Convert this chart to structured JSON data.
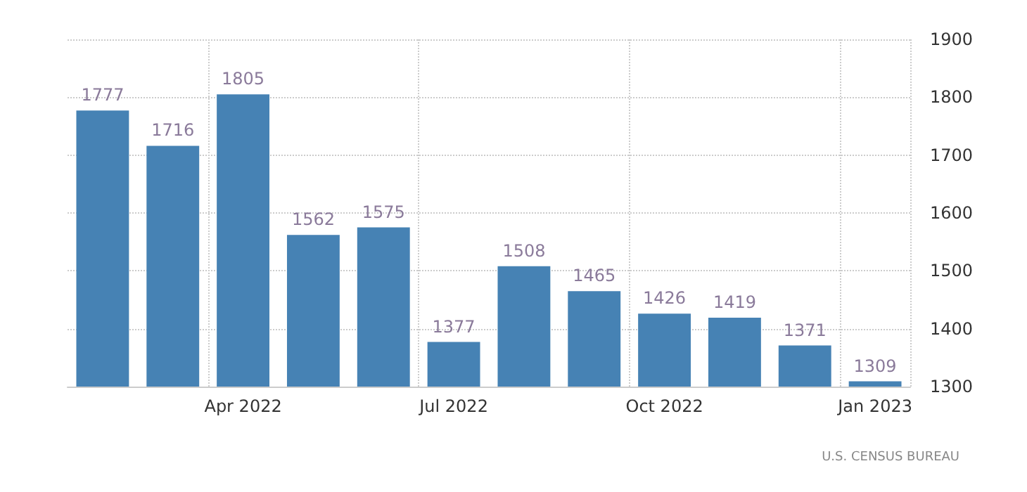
{
  "chart_data": {
    "type": "bar",
    "categories": [
      null,
      null,
      "Apr 2022",
      null,
      null,
      "Jul 2022",
      null,
      null,
      "Oct 2022",
      null,
      null,
      "Jan 2023"
    ],
    "values": [
      1777,
      1716,
      1805,
      1562,
      1575,
      1377,
      1508,
      1465,
      1426,
      1419,
      1371,
      1309
    ],
    "color": "#4682b4",
    "ylim": [
      1300,
      1900
    ],
    "yticks": [
      1300,
      1400,
      1500,
      1600,
      1700,
      1800,
      1900
    ],
    "grid": true,
    "data_labels": true,
    "annotations": [
      "U.S. CENSUS BUREAU"
    ]
  }
}
